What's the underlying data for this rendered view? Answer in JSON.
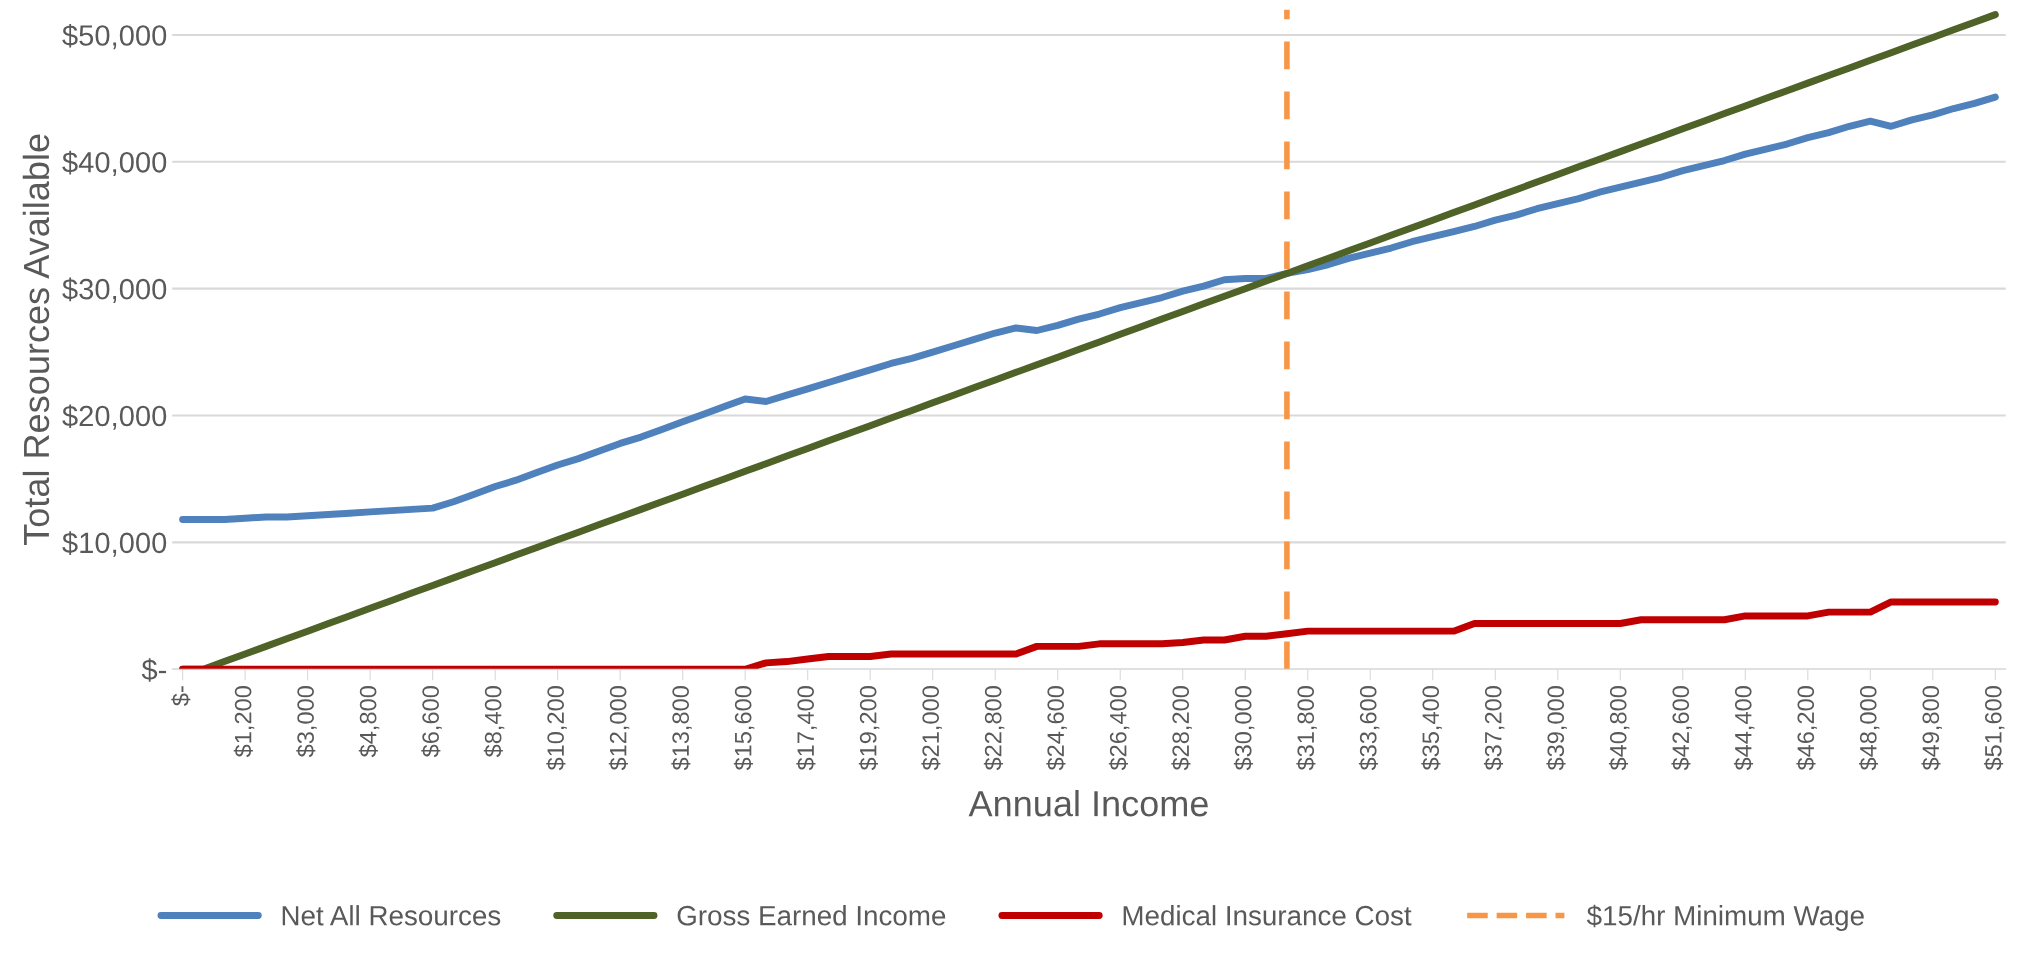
{
  "chart_data": {
    "type": "line",
    "xlabel": "Annual Income",
    "ylabel": "Total Resources Available",
    "categories": [
      "$-",
      null,
      null,
      "$1,200",
      null,
      null,
      "$3,000",
      null,
      null,
      "$4,800",
      null,
      null,
      "$6,600",
      null,
      null,
      "$8,400",
      null,
      null,
      "$10,200",
      null,
      null,
      "$12,000",
      null,
      null,
      "$13,800",
      null,
      null,
      "$15,600",
      null,
      null,
      "$17,400",
      null,
      null,
      "$19,200",
      null,
      null,
      "$21,000",
      null,
      null,
      "$22,800",
      null,
      null,
      "$24,600",
      null,
      null,
      "$26,400",
      null,
      null,
      "$28,200",
      null,
      null,
      "$30,000",
      null,
      null,
      "$31,800",
      null,
      null,
      "$33,600",
      null,
      null,
      "$35,400",
      null,
      null,
      "$37,200",
      null,
      null,
      "$39,000",
      null,
      null,
      "$40,800",
      null,
      null,
      "$42,600",
      null,
      null,
      "$44,400",
      null,
      null,
      "$46,200",
      null,
      null,
      "$48,000",
      null,
      null,
      "$49,800",
      null,
      null,
      "$51,600"
    ],
    "series": [
      {
        "name": "Net All Resources",
        "color": "#4f81bd",
        "values": [
          11800,
          11800,
          11800,
          11900,
          12000,
          12000,
          12100,
          12200,
          12300,
          12400,
          12500,
          12600,
          12700,
          13200,
          13800,
          14400,
          14900,
          15500,
          16100,
          16600,
          17200,
          17800,
          18300,
          18900,
          19500,
          20100,
          20700,
          21300,
          21100,
          21600,
          22100,
          22600,
          23100,
          23600,
          24100,
          24500,
          25000,
          25500,
          26000,
          26500,
          26900,
          26700,
          27100,
          27600,
          28000,
          28500,
          28900,
          29300,
          29800,
          30200,
          30700,
          30800,
          30800,
          31200,
          31500,
          31900,
          32400,
          32800,
          33200,
          33700,
          34100,
          34500,
          34900,
          35400,
          35800,
          36300,
          36700,
          37100,
          37600,
          38000,
          38400,
          38800,
          39300,
          39700,
          40100,
          40600,
          41000,
          41400,
          41900,
          42300,
          42800,
          43200,
          42800,
          43300,
          43700,
          44200,
          44600,
          45100
        ]
      },
      {
        "name": "Gross Earned Income",
        "color": "#4f6228",
        "values": [
          0,
          0,
          600,
          1200,
          1800,
          2400,
          3000,
          3600,
          4200,
          4800,
          5400,
          6000,
          6600,
          7200,
          7800,
          8400,
          9000,
          9600,
          10200,
          10800,
          11400,
          12000,
          12600,
          13200,
          13800,
          14400,
          15000,
          15600,
          16200,
          16800,
          17400,
          18000,
          18600,
          19200,
          19800,
          20400,
          21000,
          21600,
          22200,
          22800,
          23400,
          24000,
          24600,
          25200,
          25800,
          26400,
          27000,
          27600,
          28200,
          28800,
          29400,
          30000,
          30600,
          31200,
          31800,
          32400,
          33000,
          33600,
          34200,
          34800,
          35400,
          36000,
          36600,
          37200,
          37800,
          38400,
          39000,
          39600,
          40200,
          40800,
          41400,
          42000,
          42600,
          43200,
          43800,
          44400,
          45000,
          45600,
          46200,
          46800,
          47400,
          48000,
          48600,
          49200,
          49800,
          50400,
          51000,
          51600
        ]
      },
      {
        "name": "Medical Insurance Cost",
        "color": "#c00000",
        "values": [
          0,
          0,
          0,
          0,
          0,
          0,
          0,
          0,
          0,
          0,
          0,
          0,
          0,
          0,
          0,
          0,
          0,
          0,
          0,
          0,
          0,
          0,
          0,
          0,
          0,
          0,
          0,
          0,
          500,
          600,
          800,
          1000,
          1000,
          1000,
          1200,
          1200,
          1200,
          1200,
          1200,
          1200,
          1200,
          1800,
          1800,
          1800,
          2000,
          2000,
          2000,
          2000,
          2100,
          2300,
          2300,
          2600,
          2600,
          2800,
          3000,
          3000,
          3000,
          3000,
          3000,
          3000,
          3000,
          3000,
          3600,
          3600,
          3600,
          3600,
          3600,
          3600,
          3600,
          3600,
          3900,
          3900,
          3900,
          3900,
          3900,
          4200,
          4200,
          4200,
          4200,
          4500,
          4500,
          4500,
          5300,
          5300,
          5300,
          5300,
          5300,
          5300
        ]
      }
    ],
    "ylim": [
      0,
      52000
    ],
    "yticks": [
      {
        "value": 0,
        "label": "$-"
      },
      {
        "value": 10000,
        "label": "$10,000"
      },
      {
        "value": 20000,
        "label": "$20,000"
      },
      {
        "value": 30000,
        "label": "$30,000"
      },
      {
        "value": 40000,
        "label": "$40,000"
      },
      {
        "value": 50000,
        "label": "$50,000"
      }
    ],
    "ref_lines": [
      {
        "axis": "x",
        "label": "$15/hr Minimum Wage",
        "color": "#f79646",
        "line_style": "dashed"
      }
    ],
    "grid": "y",
    "legend": "bottom",
    "marker": "none",
    "line_style": "solid"
  }
}
